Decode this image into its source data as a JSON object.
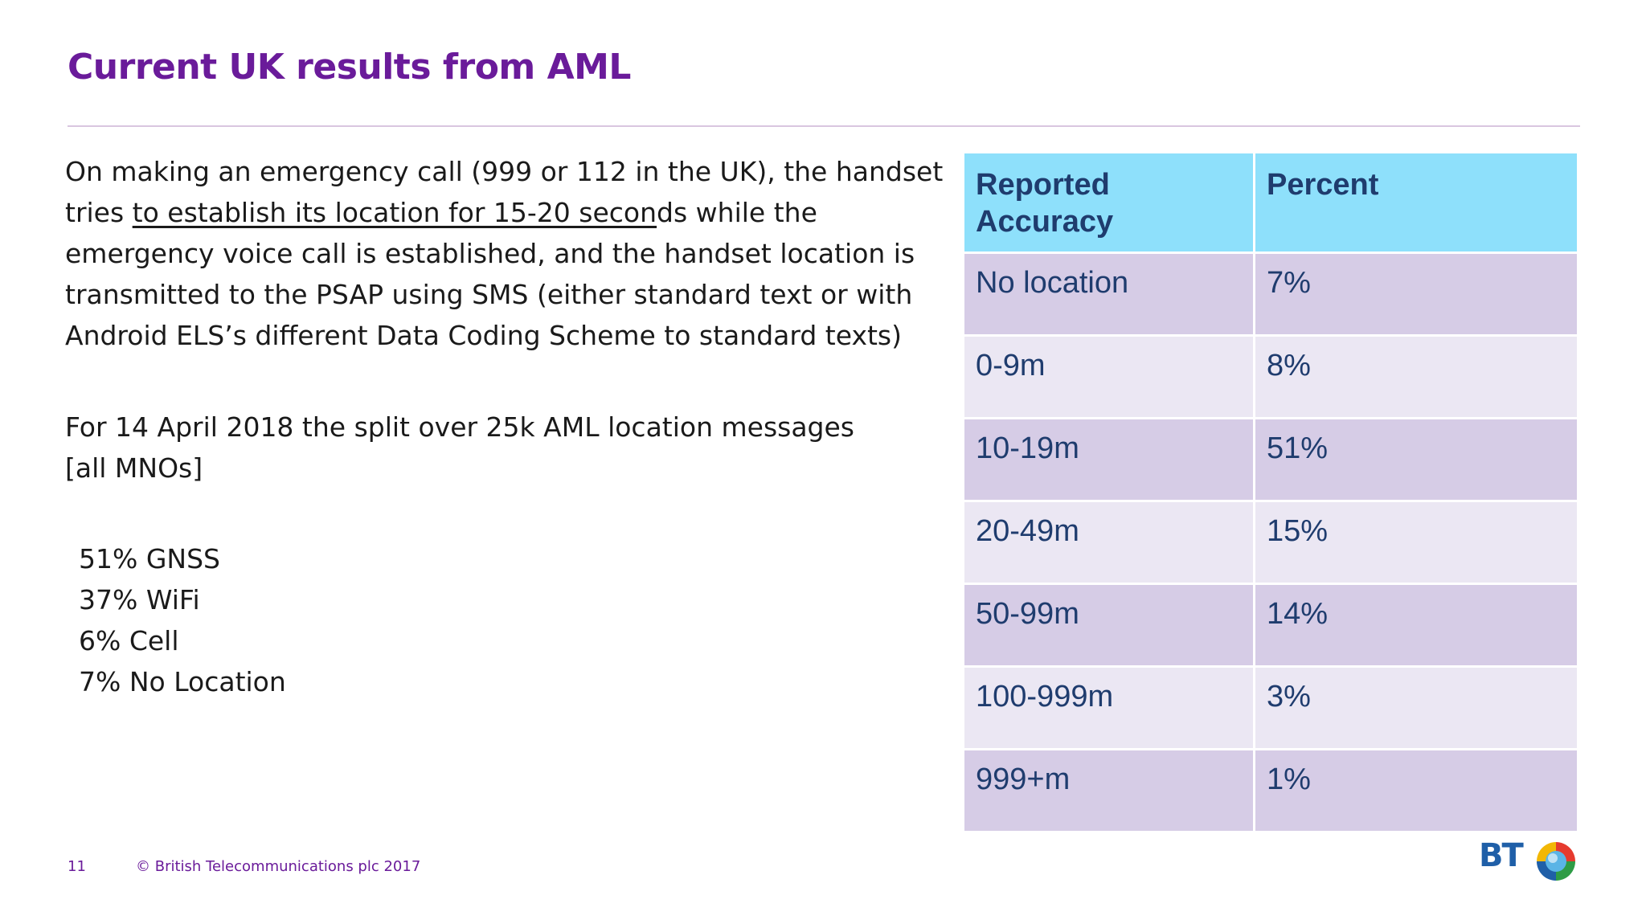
{
  "slide": {
    "title": "Current UK results from AML",
    "paragraph1_before": "On making an emergency call (999 or 112 in the UK), the handset tries ",
    "paragraph1_underlined": "to establish its location for 15-20 secon",
    "paragraph1_after": "ds while the emergency voice call is established, and the handset location is transmitted to the PSAP using SMS (either standard text or with Android ELS’s different Data Coding Scheme to standard texts)",
    "paragraph2": "For 14 April 2018 the split over 25k AML location messages [all MNOs]",
    "split": [
      "51% GNSS",
      "37% WiFi",
      "6% Cell",
      "7% No Location"
    ]
  },
  "table": {
    "headers": [
      "Reported Accuracy",
      "Percent"
    ],
    "rows": [
      [
        "No location",
        "7%"
      ],
      [
        "0-9m",
        "8%"
      ],
      [
        "10-19m",
        "51%"
      ],
      [
        "20-49m",
        "15%"
      ],
      [
        "50-99m",
        "14%"
      ],
      [
        "100-999m",
        "3%"
      ],
      [
        "999+m",
        "1%"
      ]
    ]
  },
  "footer": {
    "page_number": "11",
    "copyright": "© British Telecommunications plc 2017",
    "logo_text": "BT"
  },
  "colors": {
    "title": "#6a1b9a",
    "header_bg": "#8ee0fb",
    "row_odd": "#d6cce6",
    "row_even": "#ebe7f3",
    "table_text": "#1f3c6e"
  }
}
